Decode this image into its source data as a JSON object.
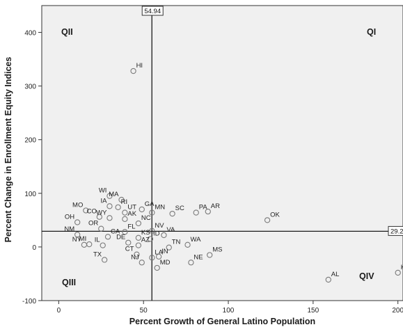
{
  "chart_data": {
    "type": "scatter",
    "xlabel": "Percent Growth of General Latino Population",
    "ylabel": "Percent Change in Enrollment Equity Indices",
    "xlim": [
      -10,
      203
    ],
    "ylim": [
      -100,
      450
    ],
    "x_ticks": [
      0,
      50,
      100,
      150,
      200
    ],
    "y_ticks": [
      -100,
      0,
      100,
      200,
      300,
      400
    ],
    "grid": false,
    "reference_lines": {
      "vertical": {
        "value": 54.94,
        "label": "54.94"
      },
      "horizontal": {
        "value": 29.2,
        "label": "29.2"
      }
    },
    "quadrant_labels": [
      "QII",
      "QI",
      "QIII",
      "QIV"
    ],
    "points": [
      {
        "label": "HI",
        "x": 44,
        "y": 328
      },
      {
        "label": "WI",
        "x": 30,
        "y": 95
      },
      {
        "label": "MA",
        "x": 37,
        "y": 88
      },
      {
        "label": "IA",
        "x": 30,
        "y": 76
      },
      {
        "label": "RI",
        "x": 35,
        "y": 74
      },
      {
        "label": "MO",
        "x": 16,
        "y": 68
      },
      {
        "label": "UT",
        "x": 39,
        "y": 64
      },
      {
        "label": "GA",
        "x": 49,
        "y": 70
      },
      {
        "label": "MN",
        "x": 55,
        "y": 64
      },
      {
        "label": "SC",
        "x": 67,
        "y": 62
      },
      {
        "label": "PA",
        "x": 81,
        "y": 64
      },
      {
        "label": "AR",
        "x": 88,
        "y": 66
      },
      {
        "label": "OK",
        "x": 123,
        "y": 50
      },
      {
        "label": "CO",
        "x": 24,
        "y": 56
      },
      {
        "label": "WY",
        "x": 30,
        "y": 54
      },
      {
        "label": "AK",
        "x": 39,
        "y": 52
      },
      {
        "label": "NC",
        "x": 47,
        "y": 44
      },
      {
        "label": "OH",
        "x": 11,
        "y": 46
      },
      {
        "label": "OR",
        "x": 25,
        "y": 34
      },
      {
        "label": "FL",
        "x": 39,
        "y": 28
      },
      {
        "label": "NV",
        "x": 55,
        "y": 30
      },
      {
        "label": "VA",
        "x": 62,
        "y": 22
      },
      {
        "label": "NM",
        "x": 11,
        "y": 23
      },
      {
        "label": "CA",
        "x": 29,
        "y": 19
      },
      {
        "label": "KS",
        "x": 47,
        "y": 17
      },
      {
        "label": "ID",
        "x": 54,
        "y": 15
      },
      {
        "label": "NY",
        "x": 15,
        "y": 4
      },
      {
        "label": "MI",
        "x": 18,
        "y": 5
      },
      {
        "label": "IL",
        "x": 26,
        "y": 3
      },
      {
        "label": "DE",
        "x": 41,
        "y": 8
      },
      {
        "label": "AZ",
        "x": 47,
        "y": 3
      },
      {
        "label": "TN",
        "x": 65,
        "y": -1
      },
      {
        "label": "WA",
        "x": 76,
        "y": 4
      },
      {
        "label": "CT",
        "x": 46,
        "y": -14
      },
      {
        "label": "LA",
        "x": 55,
        "y": -20
      },
      {
        "label": "IN",
        "x": 59,
        "y": -18
      },
      {
        "label": "MS",
        "x": 89,
        "y": -15
      },
      {
        "label": "TX",
        "x": 27,
        "y": -24
      },
      {
        "label": "NJ",
        "x": 49,
        "y": -29
      },
      {
        "label": "NE",
        "x": 78,
        "y": -29
      },
      {
        "label": "MD",
        "x": 58,
        "y": -39
      },
      {
        "label": "AL",
        "x": 159,
        "y": -61
      },
      {
        "label": "KY",
        "x": 200,
        "y": -48
      }
    ]
  }
}
